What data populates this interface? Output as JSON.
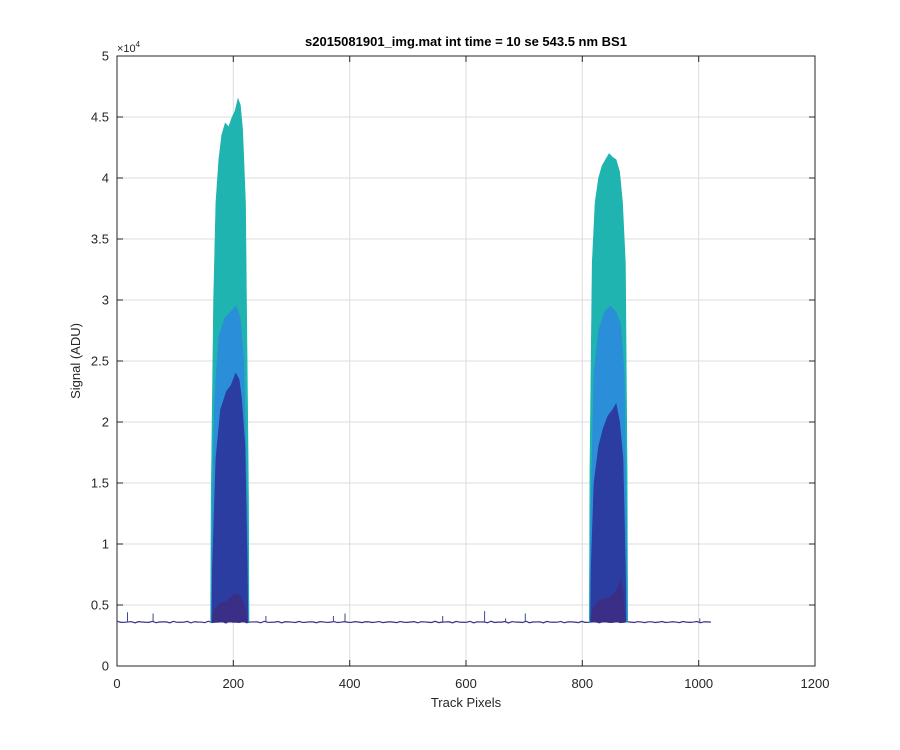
{
  "chart_data": {
    "type": "area",
    "title": "s2015081901_img.mat int time = 10 se  543.5 nm BS1",
    "xlabel": "Track Pixels",
    "ylabel": "Signal (ADU)",
    "xlim": [
      0,
      1200
    ],
    "ylim": [
      0,
      50000
    ],
    "xticks": [
      0,
      200,
      400,
      600,
      800,
      1000,
      1200
    ],
    "yticks": [
      0,
      0.5,
      1,
      1.5,
      2,
      2.5,
      3,
      3.5,
      4,
      4.5,
      5
    ],
    "ytick_labels": [
      "0",
      "0.5",
      "1",
      "1.5",
      "2",
      "2.5",
      "3",
      "3.5",
      "4",
      "4.5",
      "5"
    ],
    "y_exponent_base": "×10",
    "y_exponent_power": "4",
    "grid": true,
    "baseline": 3600,
    "x_extent": [
      1,
      1024
    ],
    "spikes": [
      {
        "x": 18,
        "y": 4400
      },
      {
        "x": 62,
        "y": 4300
      },
      {
        "x": 256,
        "y": 4100
      },
      {
        "x": 372,
        "y": 4100
      },
      {
        "x": 392,
        "y": 4300
      },
      {
        "x": 560,
        "y": 4100
      },
      {
        "x": 632,
        "y": 4500
      },
      {
        "x": 668,
        "y": 3900
      },
      {
        "x": 702,
        "y": 4300
      },
      {
        "x": 1002,
        "y": 3900
      }
    ],
    "series": [
      {
        "color": "#1fb4b0",
        "bands": [
          {
            "x": [
              161,
              162,
              166,
              170,
              175,
              180,
              186,
              192,
              198,
              203,
              208,
              212,
              216,
              221,
              226,
              227
            ],
            "y": [
              3600,
              14000,
              30000,
              38000,
              41500,
              43500,
              44500,
              44200,
              45000,
              45500,
              46500,
              46000,
              44000,
              38000,
              14000,
              3600
            ]
          },
          {
            "x": [
              812,
              813,
              817,
              822,
              828,
              834,
              840,
              846,
              852,
              858,
              864,
              869,
              874,
              877,
              878
            ],
            "y": [
              3600,
              16000,
              33000,
              38000,
              40000,
              41000,
              41500,
              42000,
              41700,
              41500,
              40500,
              38000,
              33000,
              16000,
              3600
            ]
          }
        ]
      },
      {
        "color": "#2a8fd8",
        "bands": [
          {
            "x": [
              162,
              163,
              168,
              175,
              185,
              195,
              205,
              212,
              218,
              224,
              226
            ],
            "y": [
              3600,
              10000,
              22000,
              27000,
              28500,
              29000,
              29500,
              28500,
              25000,
              12000,
              3600
            ]
          },
          {
            "x": [
              813,
              814,
              820,
              828,
              838,
              848,
              858,
              866,
              872,
              876,
              877
            ],
            "y": [
              3600,
              11000,
              24000,
              27500,
              29000,
              29500,
              29000,
              28000,
              24000,
              11000,
              3600
            ]
          }
        ]
      },
      {
        "color": "#2c3da1",
        "bands": [
          {
            "x": [
              163,
              164,
              170,
              178,
              188,
              196,
              204,
              210,
              214,
              220,
              224,
              225
            ],
            "y": [
              3600,
              8000,
              17000,
              21000,
              22500,
              23000,
              24000,
              23500,
              22000,
              18000,
              8000,
              3600
            ]
          },
          {
            "x": [
              814,
              815,
              820,
              828,
              836,
              844,
              852,
              858,
              864,
              870,
              874,
              875
            ],
            "y": [
              3600,
              8000,
              15000,
              18000,
              19500,
              20500,
              21000,
              21500,
              20000,
              17000,
              8000,
              3600
            ]
          }
        ]
      },
      {
        "color": "#3a2e86",
        "bands": [
          {
            "x": [
              164,
              166,
              176,
              188,
              200,
              208,
              214,
              220,
              224
            ],
            "y": [
              3600,
              4500,
              5100,
              5300,
              5800,
              5900,
              5600,
              4800,
              3600
            ]
          },
          {
            "x": [
              815,
              817,
              826,
              836,
              846,
              854,
              860,
              866,
              870,
              874
            ],
            "y": [
              3600,
              4500,
              5300,
              5500,
              5600,
              5900,
              6300,
              7100,
              6000,
              3600
            ]
          }
        ]
      }
    ]
  }
}
